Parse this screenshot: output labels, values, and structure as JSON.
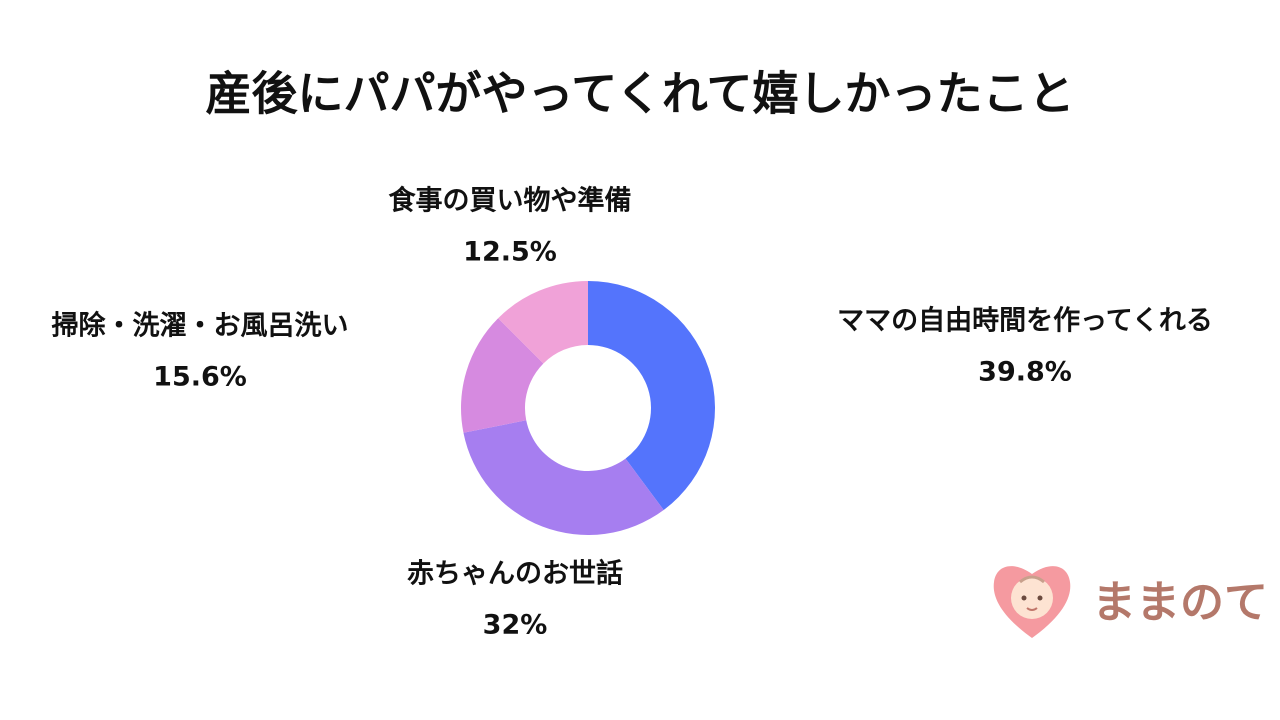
{
  "chart_data": {
    "type": "donut",
    "title": "産後にパパがやってくれて嬉しかったこと",
    "categories": [
      "ママの自由時間を作ってくれる",
      "赤ちゃんのお世話",
      "掃除・洗濯・お風呂洗い",
      "食事の買い物や準備"
    ],
    "values": [
      39.8,
      32,
      15.6,
      12.5
    ],
    "value_labels": [
      "39.8%",
      "32%",
      "15.6%",
      "12.5%"
    ],
    "colors": [
      "#5474fc",
      "#a67ef0",
      "#d68ae0",
      "#f0a2d8"
    ]
  },
  "logo_text": "ままのて"
}
